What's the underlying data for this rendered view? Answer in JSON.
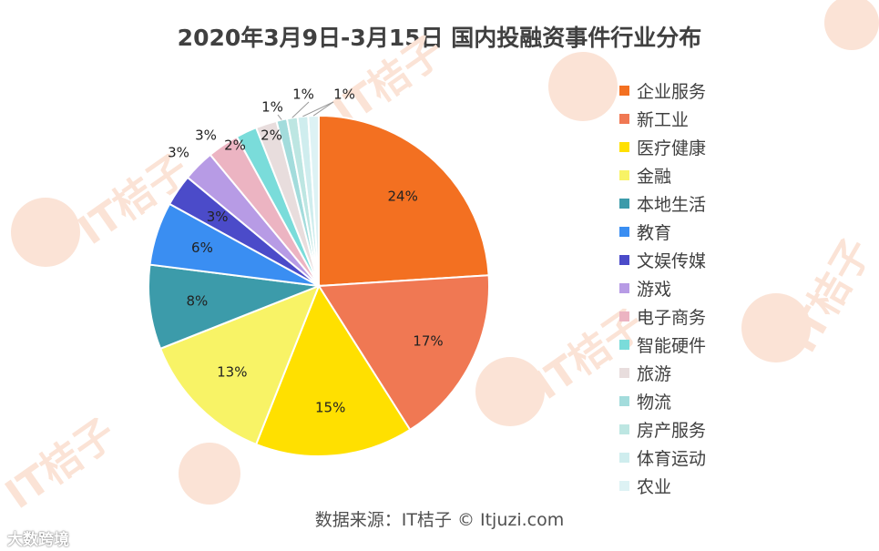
{
  "chart_data": {
    "type": "pie",
    "title": "2020年3月9日-3月15日 国内投融资事件行业分布",
    "unit": "%",
    "slices": [
      {
        "label": "企业服务",
        "value": 24,
        "color": "#F37021"
      },
      {
        "label": "新工业",
        "value": 17,
        "color": "#F07853"
      },
      {
        "label": "医疗健康",
        "value": 15,
        "color": "#FFE000"
      },
      {
        "label": "金融",
        "value": 13,
        "color": "#F8F366"
      },
      {
        "label": "本地生活",
        "value": 8,
        "color": "#3C9BAA"
      },
      {
        "label": "教育",
        "value": 6,
        "color": "#3A8EF2"
      },
      {
        "label": "文娱传媒",
        "value": 3,
        "color": "#4B4BC9"
      },
      {
        "label": "游戏",
        "value": 3,
        "color": "#B79BE5"
      },
      {
        "label": "电子商务",
        "value": 3,
        "color": "#ECB4C2"
      },
      {
        "label": "智能硬件",
        "value": 2,
        "color": "#7ADCDA"
      },
      {
        "label": "旅游",
        "value": 2,
        "color": "#E8DDDD"
      },
      {
        "label": "物流",
        "value": 1,
        "color": "#A3DCDC"
      },
      {
        "label": "房产服务",
        "value": 1,
        "color": "#BDE6E2"
      },
      {
        "label": "体育运动",
        "value": 1,
        "color": "#CFEDEE"
      },
      {
        "label": "农业",
        "value": 1,
        "color": "#DDF2F4"
      }
    ],
    "legend_position": "right"
  },
  "source": "数据来源：IT桔子 © Itjuzi.com",
  "background_watermark": "IT桔子",
  "corner_watermark": "大数跨境"
}
